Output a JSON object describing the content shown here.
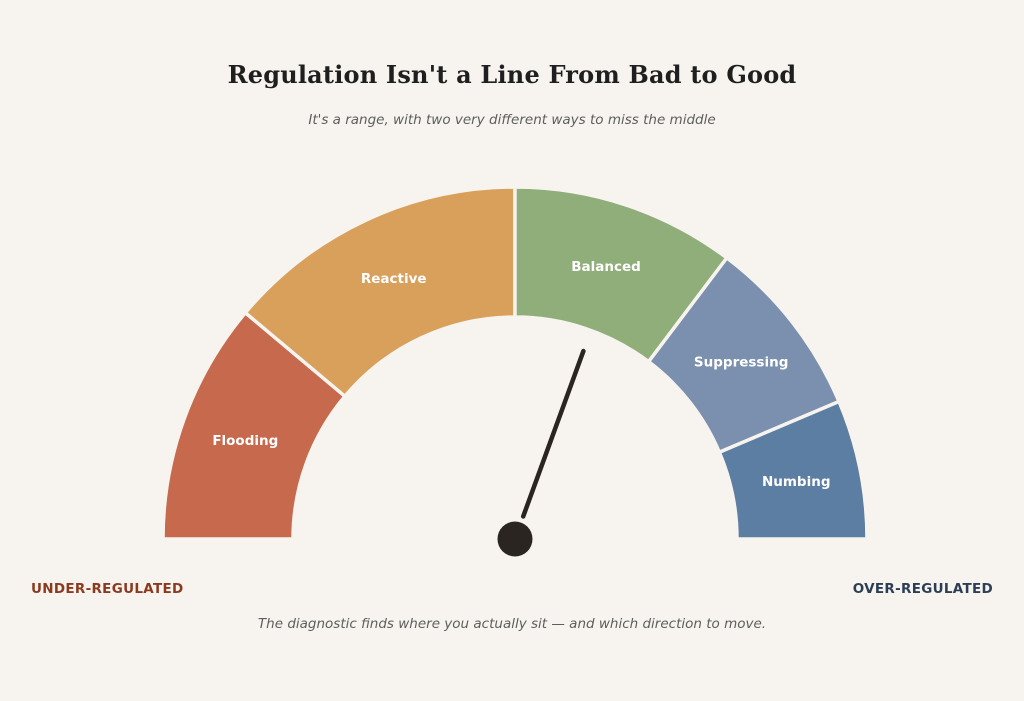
{
  "title": "Regulation Isn't a Line From Bad to Good",
  "subtitle": "It's a range, with two very different ways to miss the middle",
  "gauge": {
    "segments": [
      {
        "label": "Flooding",
        "color": "#c6694c",
        "start_deg": 180,
        "end_deg": 140
      },
      {
        "label": "Reactive",
        "color": "#d8a05a",
        "start_deg": 140,
        "end_deg": 90
      },
      {
        "label": "Balanced",
        "color": "#90ae7a",
        "start_deg": 90,
        "end_deg": 53
      },
      {
        "label": "Suppressing",
        "color": "#7b8fae",
        "start_deg": 53,
        "end_deg": 23
      },
      {
        "label": "Numbing",
        "color": "#5d7ea3",
        "start_deg": 23,
        "end_deg": 0
      }
    ],
    "needle_deg": 70,
    "needle_color": "#2a2521"
  },
  "left_end_label": "UNDER-REGULATED",
  "right_end_label": "OVER-REGULATED",
  "footnote": "The diagnostic finds where you actually sit — and which direction to move.",
  "colors": {
    "background": "#f7f4ef",
    "under_label": "#8b3a20",
    "over_label": "#2c3e55"
  }
}
